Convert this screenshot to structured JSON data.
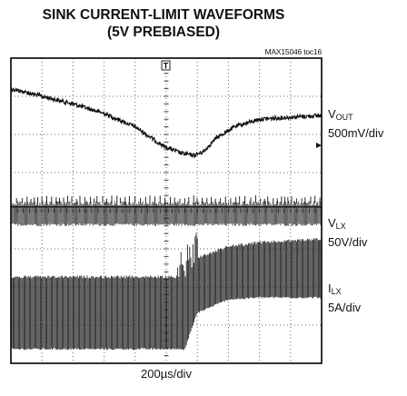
{
  "figure": {
    "title_line1": "SINK CURRENT-LIMIT WAVEFORMS",
    "title_line2": "(5V PREBIASED)",
    "figure_id": "MAX15046 toc16",
    "time_scale": "200µs/div"
  },
  "chart_data": {
    "type": "line",
    "title": "SINK CURRENT-LIMIT WAVEFORMS (5V PREBIASED)",
    "xlabel": "200µs/div",
    "grid": {
      "divisions_x": 10,
      "divisions_y": 8,
      "style": "dotted"
    },
    "x_range_div": [
      0,
      10
    ],
    "y_range_div": [
      0,
      8
    ],
    "trigger_marker": "T",
    "channels": [
      {
        "name": "V",
        "subscript": "OUT",
        "scale": "500mV/div",
        "x_div": [
          0,
          1,
          2,
          3,
          4,
          4.9,
          5.5,
          5.9,
          6.2,
          6.6,
          7.2,
          8,
          9,
          10
        ],
        "y_div": [
          7.2,
          7.0,
          6.8,
          6.55,
          6.2,
          5.7,
          5.5,
          5.45,
          5.55,
          5.9,
          6.2,
          6.4,
          6.45,
          6.5
        ]
      },
      {
        "name": "V",
        "subscript": "LX",
        "scale": "50V/div",
        "x_div": [
          0,
          10
        ],
        "y_div": [
          4.1,
          4.1
        ],
        "band_div": [
          3.55,
          4.4
        ],
        "mode": "switching"
      },
      {
        "name": "I",
        "subscript": "LX",
        "scale": "5A/div",
        "x_div": [
          0,
          5.6,
          6.0,
          7.0,
          8.0,
          10
        ],
        "envelope_top_div": [
          2.3,
          2.3,
          2.8,
          3.1,
          3.2,
          3.3
        ],
        "envelope_bottom_div": [
          0.35,
          0.35,
          1.3,
          1.65,
          1.7,
          1.7
        ],
        "mode": "switching"
      }
    ]
  }
}
